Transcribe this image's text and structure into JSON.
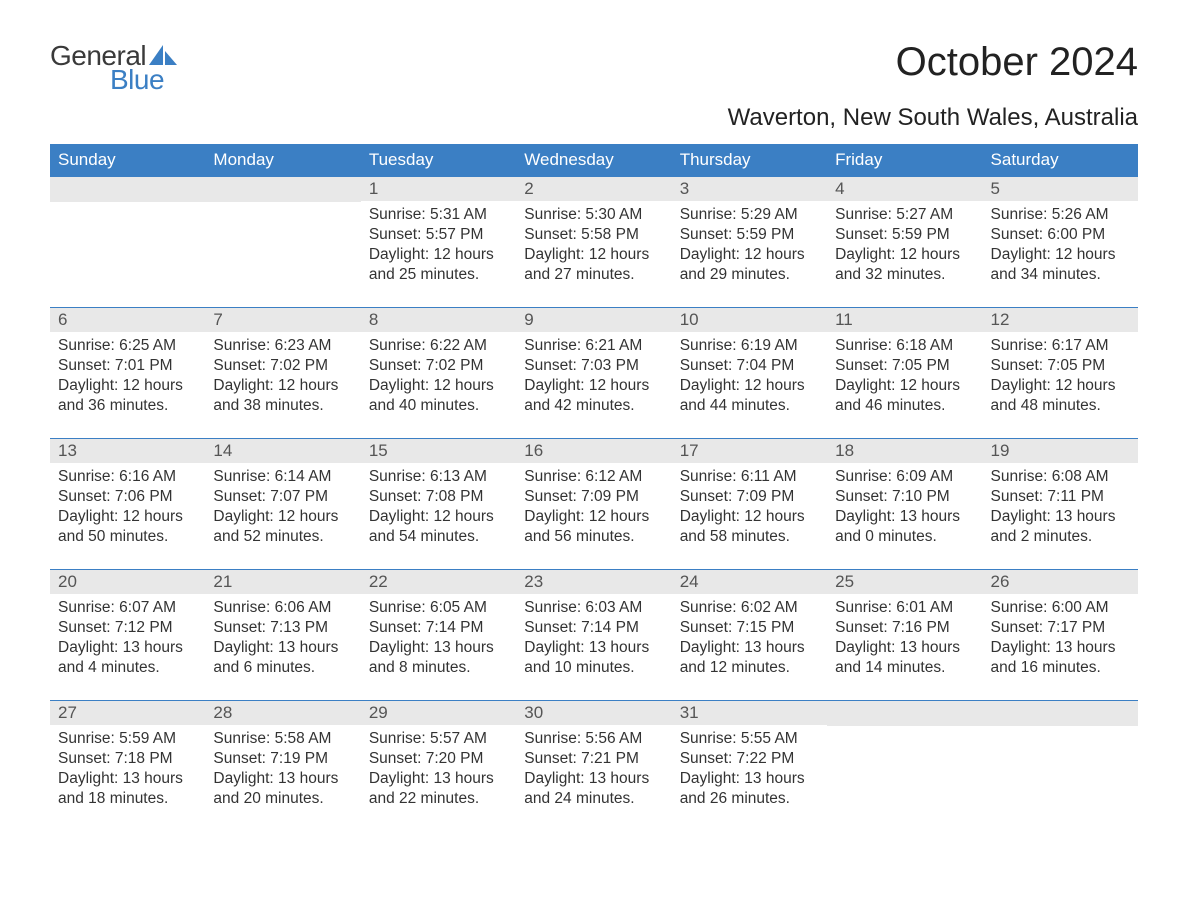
{
  "logo": {
    "text1": "General",
    "text2": "Blue",
    "sail_color": "#3b7fc4"
  },
  "title": "October 2024",
  "location": "Waverton, New South Wales, Australia",
  "colors": {
    "header_bg": "#3b7fc4",
    "header_text": "#ffffff",
    "daynum_bg": "#e8e8e8",
    "border": "#3b7fc4",
    "body_text": "#333333"
  },
  "day_names": [
    "Sunday",
    "Monday",
    "Tuesday",
    "Wednesday",
    "Thursday",
    "Friday",
    "Saturday"
  ],
  "weeks": [
    [
      {
        "n": "",
        "sunrise": "",
        "sunset": "",
        "daylight": ""
      },
      {
        "n": "",
        "sunrise": "",
        "sunset": "",
        "daylight": ""
      },
      {
        "n": "1",
        "sunrise": "Sunrise: 5:31 AM",
        "sunset": "Sunset: 5:57 PM",
        "daylight": "Daylight: 12 hours and 25 minutes."
      },
      {
        "n": "2",
        "sunrise": "Sunrise: 5:30 AM",
        "sunset": "Sunset: 5:58 PM",
        "daylight": "Daylight: 12 hours and 27 minutes."
      },
      {
        "n": "3",
        "sunrise": "Sunrise: 5:29 AM",
        "sunset": "Sunset: 5:59 PM",
        "daylight": "Daylight: 12 hours and 29 minutes."
      },
      {
        "n": "4",
        "sunrise": "Sunrise: 5:27 AM",
        "sunset": "Sunset: 5:59 PM",
        "daylight": "Daylight: 12 hours and 32 minutes."
      },
      {
        "n": "5",
        "sunrise": "Sunrise: 5:26 AM",
        "sunset": "Sunset: 6:00 PM",
        "daylight": "Daylight: 12 hours and 34 minutes."
      }
    ],
    [
      {
        "n": "6",
        "sunrise": "Sunrise: 6:25 AM",
        "sunset": "Sunset: 7:01 PM",
        "daylight": "Daylight: 12 hours and 36 minutes."
      },
      {
        "n": "7",
        "sunrise": "Sunrise: 6:23 AM",
        "sunset": "Sunset: 7:02 PM",
        "daylight": "Daylight: 12 hours and 38 minutes."
      },
      {
        "n": "8",
        "sunrise": "Sunrise: 6:22 AM",
        "sunset": "Sunset: 7:02 PM",
        "daylight": "Daylight: 12 hours and 40 minutes."
      },
      {
        "n": "9",
        "sunrise": "Sunrise: 6:21 AM",
        "sunset": "Sunset: 7:03 PM",
        "daylight": "Daylight: 12 hours and 42 minutes."
      },
      {
        "n": "10",
        "sunrise": "Sunrise: 6:19 AM",
        "sunset": "Sunset: 7:04 PM",
        "daylight": "Daylight: 12 hours and 44 minutes."
      },
      {
        "n": "11",
        "sunrise": "Sunrise: 6:18 AM",
        "sunset": "Sunset: 7:05 PM",
        "daylight": "Daylight: 12 hours and 46 minutes."
      },
      {
        "n": "12",
        "sunrise": "Sunrise: 6:17 AM",
        "sunset": "Sunset: 7:05 PM",
        "daylight": "Daylight: 12 hours and 48 minutes."
      }
    ],
    [
      {
        "n": "13",
        "sunrise": "Sunrise: 6:16 AM",
        "sunset": "Sunset: 7:06 PM",
        "daylight": "Daylight: 12 hours and 50 minutes."
      },
      {
        "n": "14",
        "sunrise": "Sunrise: 6:14 AM",
        "sunset": "Sunset: 7:07 PM",
        "daylight": "Daylight: 12 hours and 52 minutes."
      },
      {
        "n": "15",
        "sunrise": "Sunrise: 6:13 AM",
        "sunset": "Sunset: 7:08 PM",
        "daylight": "Daylight: 12 hours and 54 minutes."
      },
      {
        "n": "16",
        "sunrise": "Sunrise: 6:12 AM",
        "sunset": "Sunset: 7:09 PM",
        "daylight": "Daylight: 12 hours and 56 minutes."
      },
      {
        "n": "17",
        "sunrise": "Sunrise: 6:11 AM",
        "sunset": "Sunset: 7:09 PM",
        "daylight": "Daylight: 12 hours and 58 minutes."
      },
      {
        "n": "18",
        "sunrise": "Sunrise: 6:09 AM",
        "sunset": "Sunset: 7:10 PM",
        "daylight": "Daylight: 13 hours and 0 minutes."
      },
      {
        "n": "19",
        "sunrise": "Sunrise: 6:08 AM",
        "sunset": "Sunset: 7:11 PM",
        "daylight": "Daylight: 13 hours and 2 minutes."
      }
    ],
    [
      {
        "n": "20",
        "sunrise": "Sunrise: 6:07 AM",
        "sunset": "Sunset: 7:12 PM",
        "daylight": "Daylight: 13 hours and 4 minutes."
      },
      {
        "n": "21",
        "sunrise": "Sunrise: 6:06 AM",
        "sunset": "Sunset: 7:13 PM",
        "daylight": "Daylight: 13 hours and 6 minutes."
      },
      {
        "n": "22",
        "sunrise": "Sunrise: 6:05 AM",
        "sunset": "Sunset: 7:14 PM",
        "daylight": "Daylight: 13 hours and 8 minutes."
      },
      {
        "n": "23",
        "sunrise": "Sunrise: 6:03 AM",
        "sunset": "Sunset: 7:14 PM",
        "daylight": "Daylight: 13 hours and 10 minutes."
      },
      {
        "n": "24",
        "sunrise": "Sunrise: 6:02 AM",
        "sunset": "Sunset: 7:15 PM",
        "daylight": "Daylight: 13 hours and 12 minutes."
      },
      {
        "n": "25",
        "sunrise": "Sunrise: 6:01 AM",
        "sunset": "Sunset: 7:16 PM",
        "daylight": "Daylight: 13 hours and 14 minutes."
      },
      {
        "n": "26",
        "sunrise": "Sunrise: 6:00 AM",
        "sunset": "Sunset: 7:17 PM",
        "daylight": "Daylight: 13 hours and 16 minutes."
      }
    ],
    [
      {
        "n": "27",
        "sunrise": "Sunrise: 5:59 AM",
        "sunset": "Sunset: 7:18 PM",
        "daylight": "Daylight: 13 hours and 18 minutes."
      },
      {
        "n": "28",
        "sunrise": "Sunrise: 5:58 AM",
        "sunset": "Sunset: 7:19 PM",
        "daylight": "Daylight: 13 hours and 20 minutes."
      },
      {
        "n": "29",
        "sunrise": "Sunrise: 5:57 AM",
        "sunset": "Sunset: 7:20 PM",
        "daylight": "Daylight: 13 hours and 22 minutes."
      },
      {
        "n": "30",
        "sunrise": "Sunrise: 5:56 AM",
        "sunset": "Sunset: 7:21 PM",
        "daylight": "Daylight: 13 hours and 24 minutes."
      },
      {
        "n": "31",
        "sunrise": "Sunrise: 5:55 AM",
        "sunset": "Sunset: 7:22 PM",
        "daylight": "Daylight: 13 hours and 26 minutes."
      },
      {
        "n": "",
        "sunrise": "",
        "sunset": "",
        "daylight": ""
      },
      {
        "n": "",
        "sunrise": "",
        "sunset": "",
        "daylight": ""
      }
    ]
  ]
}
